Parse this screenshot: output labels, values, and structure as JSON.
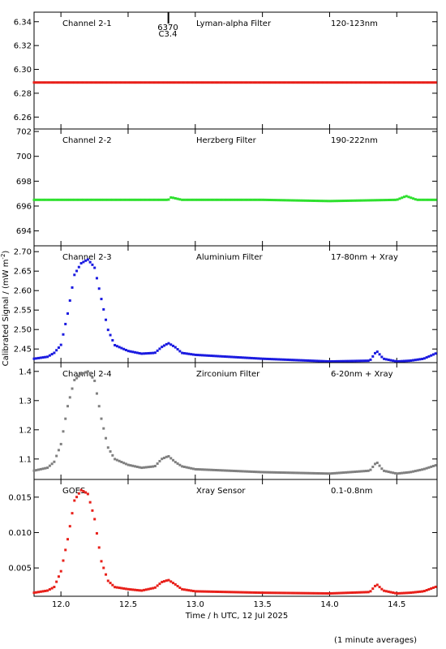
{
  "chart_data": {
    "type": "scatter",
    "xlabel": "Time / h UTC, 12 Jul 2025",
    "ylabel": "Calibrated Signal / (mW m",
    "ylabel_sup": "-2",
    "ylabel_close": ")",
    "footnote": "(1 minute averages)",
    "xlim": [
      11.8,
      14.8
    ],
    "x_ticks": [
      "12.0",
      "12.5",
      "13.0",
      "13.5",
      "14.0",
      "14.5"
    ],
    "x_tick_values": [
      12.0,
      12.5,
      13.0,
      13.5,
      14.0,
      14.5
    ],
    "grid": false,
    "flare_marker": {
      "x": 12.8,
      "label_top": "6370",
      "label_bottom": "C3.4"
    },
    "panels": [
      {
        "channel": "Channel 2-1",
        "filter": "Lyman-alpha Filter",
        "band": "120-123nm",
        "color": "#e8201a",
        "ylim": [
          6.25,
          6.348
        ],
        "y_ticks": [
          "6.26",
          "6.28",
          "6.30",
          "6.32",
          "6.34"
        ],
        "y_tick_values": [
          6.26,
          6.28,
          6.3,
          6.32,
          6.34
        ],
        "series": [
          {
            "x": [
              11.8,
              12.2,
              12.6,
              13.0,
              13.4,
              13.8,
              14.2,
              14.6,
              14.8
            ],
            "y": [
              6.289,
              6.289,
              6.289,
              6.289,
              6.289,
              6.289,
              6.289,
              6.289,
              6.289
            ]
          }
        ]
      },
      {
        "channel": "Channel 2-2",
        "filter": "Herzberg Filter",
        "band": "190-222nm",
        "color": "#2ee02e",
        "ylim": [
          692.8,
          702.2
        ],
        "y_ticks": [
          "694",
          "696",
          "698",
          "700",
          "702"
        ],
        "y_tick_values": [
          694,
          696,
          698,
          700,
          702
        ],
        "series": [
          {
            "x": [
              11.8,
              12.4,
              12.8,
              12.82,
              12.9,
              13.5,
              14.0,
              14.5,
              14.57,
              14.65,
              14.8
            ],
            "y": [
              696.5,
              696.5,
              696.5,
              696.7,
              696.5,
              696.5,
              696.4,
              696.5,
              696.8,
              696.5,
              696.5
            ]
          }
        ]
      },
      {
        "channel": "Channel 2-3",
        "filter": "Aluminium Filter",
        "band": "17-80nm + Xray",
        "color": "#1a1ae0",
        "ylim": [
          2.415,
          2.715
        ],
        "y_ticks": [
          "2.45",
          "2.50",
          "2.55",
          "2.60",
          "2.65",
          "2.70"
        ],
        "y_tick_values": [
          2.45,
          2.5,
          2.55,
          2.6,
          2.65,
          2.7
        ],
        "series": [
          {
            "x": [
              11.8,
              11.9,
              11.95,
              12.0,
              12.05,
              12.1,
              12.15,
              12.2,
              12.25,
              12.3,
              12.35,
              12.4,
              12.5,
              12.6,
              12.7,
              12.75,
              12.8,
              12.85,
              12.9,
              13.0,
              13.5,
              14.0,
              14.3,
              14.35,
              14.4,
              14.5,
              14.6,
              14.7,
              14.8
            ],
            "y": [
              2.425,
              2.43,
              2.44,
              2.46,
              2.54,
              2.64,
              2.67,
              2.68,
              2.66,
              2.58,
              2.5,
              2.46,
              2.445,
              2.438,
              2.44,
              2.455,
              2.465,
              2.455,
              2.44,
              2.435,
              2.425,
              2.418,
              2.42,
              2.445,
              2.425,
              2.418,
              2.42,
              2.425,
              2.44
            ]
          }
        ]
      },
      {
        "channel": "Channel 2-4",
        "filter": "Zirconium Filter",
        "band": "6-20nm + Xray",
        "color": "#808080",
        "ylim": [
          1.03,
          1.43
        ],
        "y_ticks": [
          "1.1",
          "1.2",
          "1.3",
          "1.4"
        ],
        "y_tick_values": [
          1.1,
          1.2,
          1.3,
          1.4
        ],
        "series": [
          {
            "x": [
              11.8,
              11.9,
              11.95,
              12.0,
              12.05,
              12.1,
              12.15,
              12.2,
              12.25,
              12.3,
              12.35,
              12.4,
              12.5,
              12.6,
              12.7,
              12.75,
              12.8,
              12.85,
              12.9,
              13.0,
              13.5,
              14.0,
              14.3,
              14.35,
              14.4,
              14.5,
              14.6,
              14.7,
              14.8
            ],
            "y": [
              1.06,
              1.07,
              1.09,
              1.15,
              1.28,
              1.37,
              1.39,
              1.4,
              1.37,
              1.24,
              1.14,
              1.1,
              1.08,
              1.07,
              1.075,
              1.1,
              1.11,
              1.09,
              1.075,
              1.065,
              1.055,
              1.05,
              1.06,
              1.09,
              1.06,
              1.05,
              1.055,
              1.065,
              1.08
            ]
          }
        ]
      },
      {
        "channel": "GOES",
        "filter": "Xray Sensor",
        "band": "0.1-0.8nm",
        "color": "#e8201a",
        "ylim": [
          0.001,
          0.0175
        ],
        "y_ticks": [
          "0.005",
          "0.010",
          "0.015"
        ],
        "y_tick_values": [
          0.005,
          0.01,
          0.015
        ],
        "series": [
          {
            "x": [
              11.8,
              11.9,
              11.95,
              12.0,
              12.05,
              12.1,
              12.15,
              12.2,
              12.25,
              12.3,
              12.35,
              12.4,
              12.5,
              12.6,
              12.7,
              12.75,
              12.8,
              12.85,
              12.9,
              13.0,
              13.5,
              14.0,
              14.3,
              14.35,
              14.4,
              14.5,
              14.6,
              14.7,
              14.8
            ],
            "y": [
              0.0015,
              0.0018,
              0.0023,
              0.0045,
              0.009,
              0.0145,
              0.016,
              0.0155,
              0.012,
              0.006,
              0.0032,
              0.0023,
              0.002,
              0.0018,
              0.0022,
              0.003,
              0.0033,
              0.0027,
              0.002,
              0.0017,
              0.0015,
              0.0014,
              0.0016,
              0.0027,
              0.0018,
              0.0014,
              0.0015,
              0.0017,
              0.0024
            ]
          }
        ]
      }
    ]
  }
}
